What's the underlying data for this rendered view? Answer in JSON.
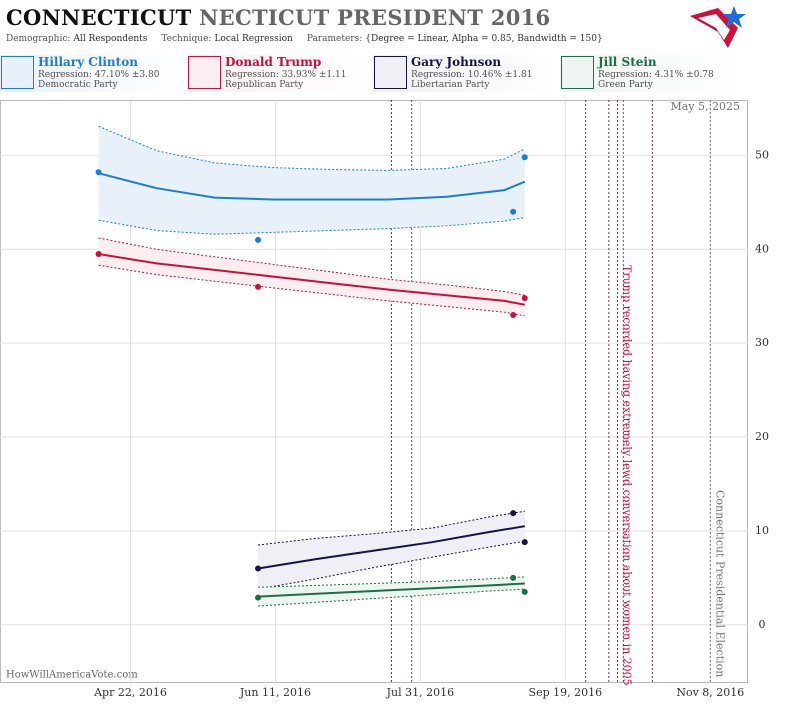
{
  "header": {
    "title_main": "CONNECTICUT",
    "title_rest": "NECTICUT PRESIDENT 2016",
    "params": [
      {
        "label": "Demographic:",
        "value": "All Respondents"
      },
      {
        "label": "Technique:",
        "value": "Local Regression"
      },
      {
        "label": "Parameters:",
        "value": "{Degree = Linear, Alpha = 0.85, Bandwidth = 150}"
      }
    ]
  },
  "chart_data": {
    "type": "line",
    "date_label": "May 5, 2025",
    "watermark": "HowWillAmericaVote.com",
    "xlim": [
      "2016-03-08",
      "2016-11-21"
    ],
    "xticks": [
      {
        "value": "2016-04-22",
        "label": "Apr 22, 2016"
      },
      {
        "value": "2016-06-11",
        "label": "Jun 11, 2016"
      },
      {
        "value": "2016-07-31",
        "label": "Jul 31, 2016"
      },
      {
        "value": "2016-09-19",
        "label": "Sep 19, 2016"
      },
      {
        "value": "2016-11-08",
        "label": "Nov 8, 2016"
      }
    ],
    "ylim": [
      -6.2,
      55.9
    ],
    "yticks": [
      0,
      10,
      20,
      30,
      40,
      50
    ],
    "grid": true,
    "series": [
      {
        "name": "Hillary Clinton",
        "regression": "Regression: 47.10% ±3.80",
        "party": "Democratic Party",
        "color": "#1a7fd4",
        "band_color": "#e8f0fa",
        "points": {
          "x": [
            "2016-04-11",
            "2016-06-05",
            "2016-09-01",
            "2016-09-05"
          ],
          "values": [
            48.2,
            41,
            44,
            49.8
          ]
        },
        "trend": {
          "x": [
            "2016-04-11",
            "2016-05-01",
            "2016-05-21",
            "2016-06-10",
            "2016-06-30",
            "2016-07-20",
            "2016-08-09",
            "2016-08-29",
            "2016-09-05"
          ],
          "values": [
            48.1,
            46.5,
            45.5,
            45.3,
            45.3,
            45.3,
            45.6,
            46.3,
            47.2
          ],
          "upper": [
            53.1,
            50.5,
            49.2,
            48.7,
            48.5,
            48.4,
            48.6,
            49.6,
            50.7
          ],
          "lower": [
            43.1,
            42.0,
            41.6,
            41.8,
            42.0,
            42.2,
            42.5,
            43.0,
            43.4
          ]
        }
      },
      {
        "name": "Donald Trump",
        "regression": "Regression: 33.93% ±1.11",
        "party": "Republican Party",
        "color": "#cc0e3a",
        "band_color": "#fbeef1",
        "points": {
          "x": [
            "2016-04-11",
            "2016-06-05",
            "2016-09-01",
            "2016-09-05"
          ],
          "values": [
            39.5,
            36,
            33,
            34.8
          ]
        },
        "trend": {
          "x": [
            "2016-04-11",
            "2016-05-01",
            "2016-05-21",
            "2016-06-10",
            "2016-06-30",
            "2016-07-20",
            "2016-08-09",
            "2016-08-29",
            "2016-09-05"
          ],
          "values": [
            39.5,
            38.5,
            37.8,
            37.1,
            36.4,
            35.7,
            35.1,
            34.5,
            34.1
          ],
          "upper": [
            41.2,
            40.0,
            39.2,
            38.4,
            37.6,
            36.8,
            36.2,
            35.5,
            35.1
          ],
          "lower": [
            38.3,
            37.3,
            36.6,
            35.9,
            35.2,
            34.5,
            33.9,
            33.3,
            32.9
          ]
        }
      },
      {
        "name": "Gary Johnson",
        "regression": "Regression: 10.46% ±1.81",
        "party": "Libertarian Party",
        "color": "#16124a",
        "band_color": "#efeff5",
        "points": {
          "x": [
            "2016-06-05",
            "2016-09-01",
            "2016-09-05"
          ],
          "values": [
            6.0,
            11.9,
            8.8
          ]
        },
        "trend": {
          "x": [
            "2016-06-05",
            "2016-06-25",
            "2016-07-15",
            "2016-08-04",
            "2016-08-24",
            "2016-09-05"
          ],
          "values": [
            6.0,
            7.0,
            7.9,
            8.8,
            9.9,
            10.5
          ],
          "upper": [
            8.5,
            9.2,
            9.7,
            10.3,
            11.5,
            12.1
          ],
          "lower": [
            3.8,
            4.9,
            6.1,
            7.2,
            8.3,
            8.9
          ]
        }
      },
      {
        "name": "Jill Stein",
        "regression": "Regression: 4.31% ±0.78",
        "party": "Green Party",
        "color": "#1a7048",
        "band_color": "#eef5f1",
        "points": {
          "x": [
            "2016-06-05",
            "2016-09-01",
            "2016-09-05"
          ],
          "values": [
            2.9,
            5.0,
            3.5
          ]
        },
        "trend": {
          "x": [
            "2016-06-05",
            "2016-06-25",
            "2016-07-15",
            "2016-08-04",
            "2016-08-24",
            "2016-09-05"
          ],
          "values": [
            3.0,
            3.3,
            3.6,
            3.9,
            4.2,
            4.4
          ],
          "upper": [
            4.0,
            4.2,
            4.4,
            4.6,
            4.9,
            5.1
          ],
          "lower": [
            2.0,
            2.4,
            2.8,
            3.2,
            3.6,
            3.8
          ]
        }
      }
    ],
    "events": [
      {
        "date": "2016-07-21",
        "color": "#8b1a4a"
      },
      {
        "date": "2016-07-28",
        "color": "#1f6f9f"
      },
      {
        "date": "2016-09-26",
        "color": "#b03050"
      },
      {
        "date": "2016-10-04",
        "color": "#7a2a7a"
      },
      {
        "date": "2016-10-07",
        "color": "#cc0e3a",
        "label": "Trump recorded having extremely lewd conversation about women in 2005"
      },
      {
        "date": "2016-10-09",
        "color": "#b03050"
      },
      {
        "date": "2016-10-19",
        "color": "#7a2a7a"
      },
      {
        "date": "2016-11-08",
        "color": "#777777",
        "label": "Connecticut Presidential Election"
      }
    ]
  }
}
